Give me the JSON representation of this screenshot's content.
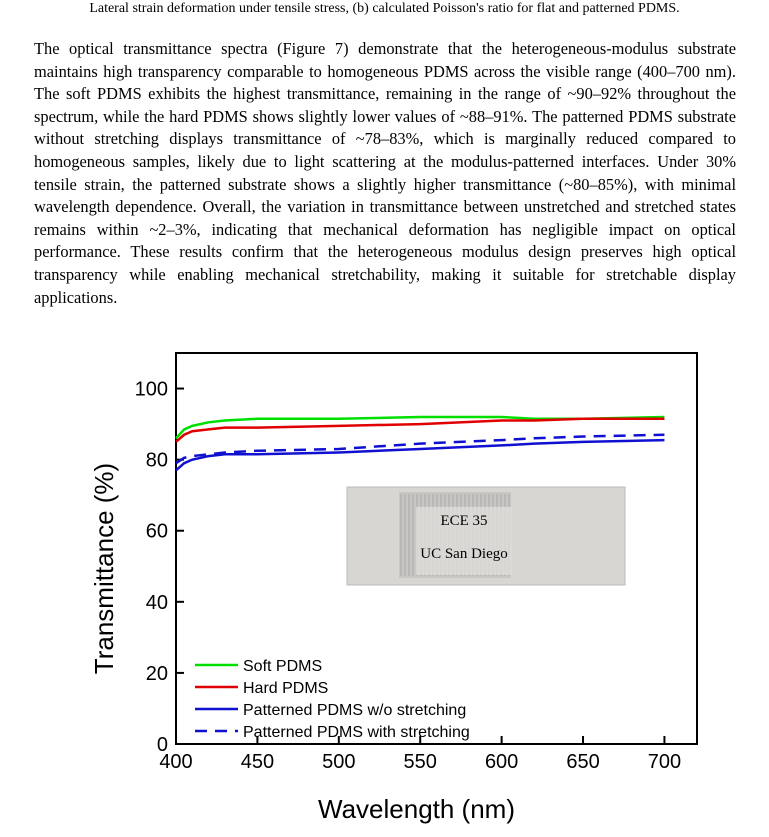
{
  "caption_top": "Lateral strain deformation under tensile stress, (b) calculated Poisson's ratio for flat and patterned PDMS.",
  "paragraph": "The optical transmittance spectra (Figure 7) demonstrate that the heterogeneous-modulus substrate maintains high transparency comparable to homogeneous PDMS across the visible range (400–700 nm). The soft PDMS exhibits the highest transmittance, remaining in the range of ~90–92% throughout the spectrum, while the hard PDMS shows slightly lower values of ~88–91%. The patterned PDMS substrate without stretching displays transmittance of ~78–83%, which is marginally reduced compared to homogeneous samples, likely due to light scattering at the modulus-patterned interfaces. Under 30% tensile strain, the patterned substrate shows a slightly higher transmittance (~80–85%), with minimal wavelength dependence. Overall, the variation in transmittance between unstretched and stretched states remains within ~2–3%, indicating that mechanical deformation has negligible impact on optical performance. These results confirm that the heterogeneous modulus design preserves high optical transparency while enabling mechanical stretchability, making it suitable for stretchable display applications.",
  "chart_data": {
    "type": "line",
    "x_label": "Wavelength (nm)",
    "y_label": "Transmittance (%)",
    "x": [
      400,
      405,
      410,
      420,
      430,
      450,
      500,
      550,
      600,
      620,
      650,
      700
    ],
    "series": [
      {
        "name": "Soft PDMS",
        "color": "#00e000",
        "linestyle": "solid",
        "values": [
          86,
          88.5,
          89.5,
          90.5,
          91,
          91.5,
          91.5,
          92,
          92,
          91.5,
          91.5,
          92
        ]
      },
      {
        "name": "Hard PDMS",
        "color": "#e00000",
        "linestyle": "solid",
        "values": [
          85,
          87,
          88,
          88.5,
          89,
          89,
          89.5,
          90,
          91,
          91,
          91.5,
          91.5
        ]
      },
      {
        "name": "Patterned PDMS w/o stretching",
        "color": "#1010d0",
        "linestyle": "solid",
        "values": [
          77,
          79,
          80,
          81,
          81.5,
          81.5,
          82,
          83,
          84,
          84.5,
          85,
          85.5
        ]
      },
      {
        "name": "Patterned PDMS with stretching",
        "color": "#1010d0",
        "linestyle": "dashed",
        "values": [
          79,
          80.5,
          81,
          81.5,
          82,
          82.5,
          83,
          84.5,
          85.5,
          86,
          86.5,
          87
        ]
      }
    ],
    "xlim": [
      400,
      720
    ],
    "ylim": [
      0,
      110
    ],
    "xticks": [
      400,
      450,
      500,
      550,
      600,
      650,
      700
    ],
    "yticks": [
      0,
      20,
      40,
      60,
      80,
      100
    ],
    "legend": "lower left",
    "inset_labels": [
      "ECE 35",
      "UC San Diego"
    ]
  }
}
